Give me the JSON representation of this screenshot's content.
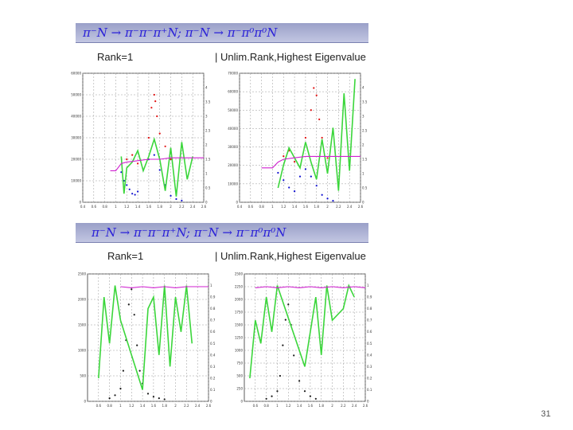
{
  "slide": {
    "number": "31",
    "section1": {
      "title": "π⁻N → π⁻π⁻π⁺N; π⁻N → π⁻π⁰π⁰N",
      "left_header": "Rank=1",
      "right_header": "|  Unlim.Rank,Highest Eigenvalue"
    },
    "section2": {
      "title": "π⁻N → π⁻π⁻π⁺N; π⁻N → π⁻π⁰π⁰N",
      "left_header": "Rank=1",
      "right_header": "|  Unlim.Rank,Highest Eigenvalue"
    }
  },
  "colors": {
    "banner_text": "#2a20d8",
    "intensity": "#1a1a1a",
    "red_points": "#e01010",
    "blue_points": "#1010d0",
    "green_line": "#3bd63b",
    "magenta_line": "#d020d0"
  },
  "chart_data": [
    {
      "type": "scatter",
      "panel": "top-left",
      "xlim": [
        0.4,
        2.6
      ],
      "ylim": [
        0,
        60000
      ],
      "y2lim": [
        0,
        4.5
      ],
      "xticks": [
        "0.4",
        "0.6",
        "0.8",
        "1",
        "1.2",
        "1.4",
        "1.6",
        "1.8",
        "2",
        "2.2",
        "2.4",
        "2.6"
      ],
      "yticks": [
        "0",
        "10000",
        "20000",
        "30000",
        "40000",
        "50000",
        "60000"
      ],
      "y2ticks": [
        "0",
        "0.5",
        "1",
        "1.5",
        "2",
        "2.5",
        "3",
        "3.5",
        "4"
      ],
      "series": [
        {
          "role": "red",
          "x": [
            1.2,
            1.3,
            1.4,
            1.6,
            1.65,
            1.7,
            1.72,
            1.75,
            1.8,
            1.9,
            2.0
          ],
          "y": [
            20000,
            22000,
            18000,
            30000,
            44000,
            50000,
            47000,
            40000,
            32000,
            26000,
            20000
          ]
        },
        {
          "role": "blue",
          "x": [
            1.1,
            1.15,
            1.2,
            1.25,
            1.3,
            1.35,
            1.4,
            1.5,
            1.6,
            1.7,
            1.8,
            1.9,
            2.0,
            2.1,
            2.2
          ],
          "y": [
            14000,
            10000,
            8000,
            6000,
            4000,
            3500,
            5000,
            15000,
            20000,
            22000,
            15000,
            8000,
            3000,
            1500,
            800
          ]
        },
        {
          "role": "green",
          "x": [
            1.1,
            1.15,
            1.2,
            1.3,
            1.4,
            1.5,
            1.6,
            1.7,
            1.8,
            1.9,
            2.0,
            2.1,
            2.2,
            2.3,
            2.4
          ],
          "y": [
            1.6,
            0.3,
            1.2,
            1.4,
            1.8,
            1.1,
            1.6,
            2.2,
            1.5,
            0.4,
            1.9,
            0.2,
            2.1,
            0.8,
            1.6
          ]
        },
        {
          "role": "magenta",
          "x": [
            0.9,
            1.0,
            1.1,
            1.2,
            1.4,
            1.6,
            1.8,
            2.0,
            2.2,
            2.4,
            2.6
          ],
          "y": [
            1.1,
            1.1,
            1.35,
            1.4,
            1.45,
            1.5,
            1.5,
            1.55,
            1.55,
            1.55,
            1.55
          ]
        }
      ]
    },
    {
      "type": "scatter",
      "panel": "top-right",
      "xlim": [
        0.4,
        2.6
      ],
      "ylim": [
        0,
        70000
      ],
      "y2lim": [
        0,
        4.5
      ],
      "xticks": [
        "0.4",
        "0.6",
        "0.8",
        "1",
        "1.2",
        "1.4",
        "1.6",
        "1.8",
        "2",
        "2.2",
        "2.4",
        "2.6"
      ],
      "yticks": [
        "0",
        "10000",
        "20000",
        "30000",
        "40000",
        "50000",
        "60000",
        "70000"
      ],
      "y2ticks": [
        "0",
        "0.5",
        "1",
        "1.5",
        "2",
        "2.5",
        "3",
        "3.5",
        "4"
      ],
      "series": [
        {
          "role": "red",
          "x": [
            1.2,
            1.3,
            1.4,
            1.6,
            1.7,
            1.75,
            1.8,
            1.85,
            1.9,
            2.0
          ],
          "y": [
            25000,
            28000,
            22000,
            35000,
            50000,
            62000,
            58000,
            45000,
            35000,
            24000
          ]
        },
        {
          "role": "blue",
          "x": [
            1.1,
            1.2,
            1.3,
            1.4,
            1.5,
            1.6,
            1.7,
            1.8,
            1.9,
            2.0,
            2.1
          ],
          "y": [
            16000,
            12000,
            8000,
            6000,
            14000,
            18000,
            14000,
            9000,
            4000,
            2000,
            800
          ]
        },
        {
          "role": "green",
          "x": [
            1.1,
            1.2,
            1.3,
            1.5,
            1.6,
            1.7,
            1.8,
            1.9,
            2.0,
            2.1,
            2.2,
            2.3,
            2.4,
            2.5
          ],
          "y": [
            0.5,
            1.3,
            1.9,
            1.2,
            2.1,
            1.4,
            0.8,
            2.2,
            1.0,
            2.6,
            0.4,
            3.8,
            1.1,
            4.3
          ]
        },
        {
          "role": "magenta",
          "x": [
            0.8,
            1.0,
            1.1,
            1.2,
            1.4,
            1.6,
            1.8,
            2.0,
            2.2,
            2.4,
            2.6
          ],
          "y": [
            1.2,
            1.2,
            1.4,
            1.5,
            1.55,
            1.6,
            1.6,
            1.6,
            1.6,
            1.6,
            1.6
          ]
        }
      ]
    },
    {
      "type": "scatter",
      "panel": "bottom-left",
      "xlim": [
        0.4,
        2.6
      ],
      "ylim": [
        0,
        2500
      ],
      "y2lim": [
        0,
        1.1
      ],
      "xticks": [
        "0.6",
        "0.8",
        "1",
        "1.2",
        "1.4",
        "1.6",
        "1.8",
        "2",
        "2.2",
        "2.4",
        "2.6"
      ],
      "yticks": [
        "0",
        "500",
        "1000",
        "1500",
        "2000",
        "2500"
      ],
      "y2ticks": [
        "0",
        "0.1",
        "0.2",
        "0.3",
        "0.4",
        "0.5",
        "0.6",
        "0.7",
        "0.8",
        "0.9",
        "1"
      ],
      "series": [
        {
          "role": "black",
          "x": [
            0.8,
            0.9,
            1.0,
            1.05,
            1.1,
            1.15,
            1.2,
            1.25,
            1.3,
            1.35,
            1.4,
            1.5,
            1.6,
            1.7,
            1.8
          ],
          "y": [
            60,
            120,
            250,
            600,
            1200,
            1900,
            2200,
            1700,
            1100,
            600,
            350,
            150,
            90,
            60,
            40
          ]
        },
        {
          "role": "green",
          "x": [
            0.6,
            0.7,
            0.8,
            0.9,
            1.0,
            1.4,
            1.5,
            1.6,
            1.7,
            1.8,
            1.9,
            2.0,
            2.1,
            2.2,
            2.3
          ],
          "y": [
            0.2,
            0.9,
            0.5,
            1.0,
            0.7,
            0.1,
            0.8,
            0.9,
            0.4,
            1.0,
            0.3,
            0.9,
            0.6,
            1.0,
            0.5
          ]
        },
        {
          "role": "magenta",
          "x": [
            1.0,
            1.2,
            1.4,
            1.6,
            1.8,
            2.0,
            2.2,
            2.4,
            2.6
          ],
          "y": [
            0.99,
            0.98,
            0.99,
            0.98,
            0.99,
            0.98,
            0.99,
            0.99,
            0.99
          ]
        }
      ]
    },
    {
      "type": "scatter",
      "panel": "bottom-right",
      "xlim": [
        0.4,
        2.6
      ],
      "ylim": [
        0,
        2500
      ],
      "y2lim": [
        0,
        1.1
      ],
      "xticks": [
        "0.6",
        "0.8",
        "1",
        "1.2",
        "1.4",
        "1.6",
        "1.8",
        "2",
        "2.2",
        "2.4",
        "2.6"
      ],
      "yticks": [
        "0",
        "250",
        "500",
        "750",
        "1000",
        "1250",
        "1500",
        "1750",
        "2000",
        "2250",
        "2500"
      ],
      "y2ticks": [
        "0",
        "0.1",
        "0.2",
        "0.3",
        "0.4",
        "0.5",
        "0.6",
        "0.7",
        "0.8",
        "0.9",
        "1"
      ],
      "series": [
        {
          "role": "black",
          "x": [
            0.8,
            0.9,
            1.0,
            1.05,
            1.1,
            1.15,
            1.2,
            1.25,
            1.3,
            1.4,
            1.5,
            1.6,
            1.7
          ],
          "y": [
            50,
            100,
            200,
            500,
            1100,
            1600,
            1900,
            1500,
            900,
            400,
            200,
            100,
            50
          ]
        },
        {
          "role": "green",
          "x": [
            0.5,
            0.6,
            0.7,
            0.8,
            0.9,
            1.0,
            1.5,
            1.6,
            1.7,
            1.8,
            1.9,
            2.0,
            2.2,
            2.3,
            2.4
          ],
          "y": [
            0.2,
            0.7,
            0.5,
            0.9,
            0.6,
            1.0,
            0.3,
            0.6,
            0.9,
            0.4,
            1.0,
            0.7,
            0.8,
            1.0,
            0.9
          ]
        },
        {
          "role": "magenta",
          "x": [
            0.6,
            0.8,
            1.0,
            1.2,
            1.4,
            1.6,
            1.8,
            2.0,
            2.2,
            2.4,
            2.6
          ],
          "y": [
            0.98,
            0.99,
            0.98,
            0.99,
            0.98,
            0.99,
            0.98,
            0.99,
            0.98,
            0.99,
            0.98
          ]
        }
      ]
    }
  ]
}
